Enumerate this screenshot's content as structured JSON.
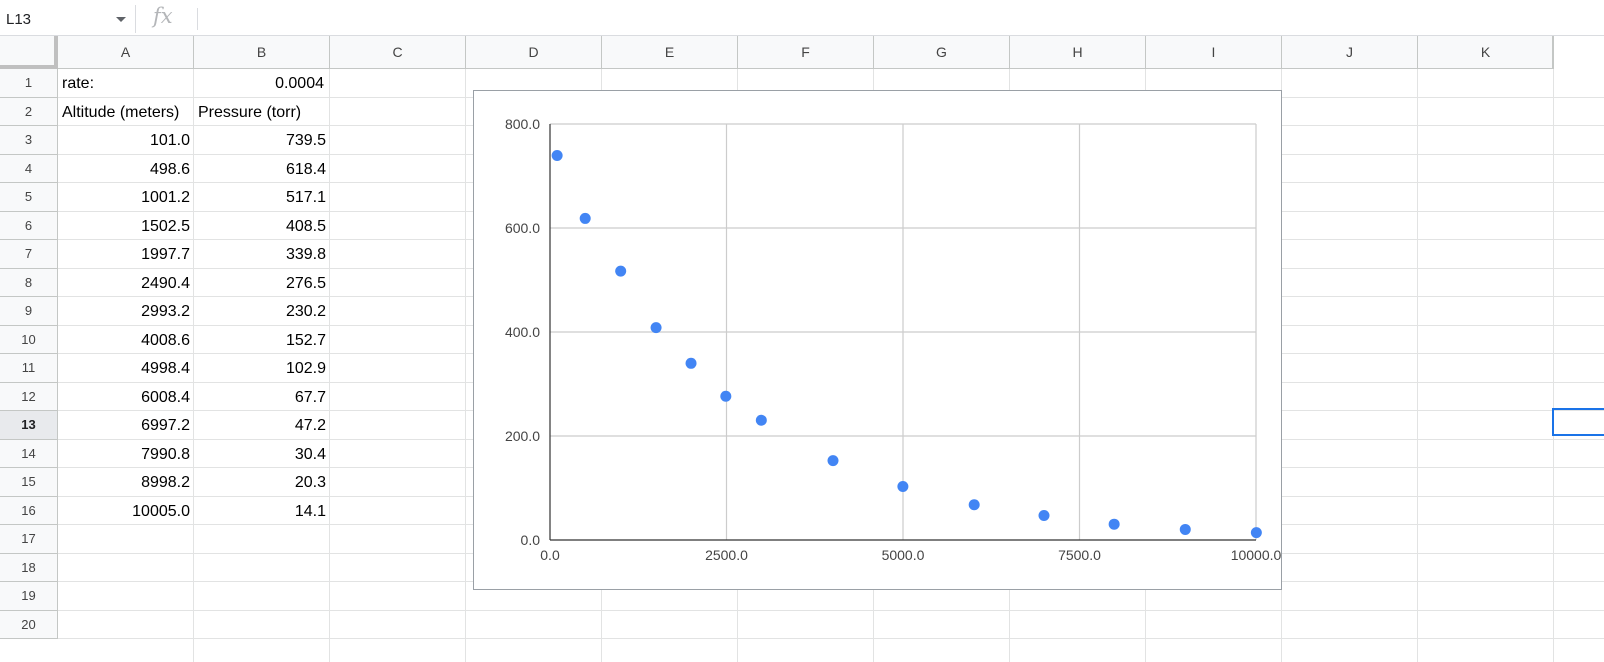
{
  "formula_bar": {
    "name_box": "L13",
    "fx_label": "fx",
    "formula": ""
  },
  "columns": [
    "A",
    "B",
    "C",
    "D",
    "E",
    "F",
    "G",
    "H",
    "I",
    "J",
    "K"
  ],
  "rows": [
    "1",
    "2",
    "3",
    "4",
    "5",
    "6",
    "7",
    "8",
    "9",
    "10",
    "11",
    "12",
    "13",
    "14",
    "15",
    "16",
    "17",
    "18",
    "19",
    "20"
  ],
  "selected_row": "13",
  "cells": {
    "A1": "rate:",
    "B1": "0.0004",
    "A2": "Altitude (meters)",
    "B2": "Pressure (torr)"
  },
  "data_rows": [
    {
      "altitude": "101.0",
      "pressure": "739.5"
    },
    {
      "altitude": "498.6",
      "pressure": "618.4"
    },
    {
      "altitude": "1001.2",
      "pressure": "517.1"
    },
    {
      "altitude": "1502.5",
      "pressure": "408.5"
    },
    {
      "altitude": "1997.7",
      "pressure": "339.8"
    },
    {
      "altitude": "2490.4",
      "pressure": "276.5"
    },
    {
      "altitude": "2993.2",
      "pressure": "230.2"
    },
    {
      "altitude": "4008.6",
      "pressure": "152.7"
    },
    {
      "altitude": "4998.4",
      "pressure": "102.9"
    },
    {
      "altitude": "6008.4",
      "pressure": "67.7"
    },
    {
      "altitude": "6997.2",
      "pressure": "47.2"
    },
    {
      "altitude": "7990.8",
      "pressure": "30.4"
    },
    {
      "altitude": "8998.2",
      "pressure": "20.3"
    },
    {
      "altitude": "10005.0",
      "pressure": "14.1"
    }
  ],
  "chart_data": {
    "type": "scatter",
    "title": "",
    "xlabel": "",
    "ylabel": "",
    "xlim": [
      0,
      10000
    ],
    "ylim": [
      0,
      800
    ],
    "x_ticks": [
      "0.0",
      "2500.0",
      "5000.0",
      "7500.0",
      "10000.0"
    ],
    "y_ticks": [
      "0.0",
      "200.0",
      "400.0",
      "600.0",
      "800.0"
    ],
    "grid": true,
    "point_color": "#4285f4",
    "series": [
      {
        "x": [
          101.0,
          498.6,
          1001.2,
          1502.5,
          1997.7,
          2490.4,
          2993.2,
          4008.6,
          4998.4,
          6008.4,
          6997.2,
          7990.8,
          8998.2,
          10005.0
        ],
        "y": [
          739.5,
          618.4,
          517.1,
          408.5,
          339.8,
          276.5,
          230.2,
          152.7,
          102.9,
          67.7,
          47.2,
          30.4,
          20.3,
          14.1
        ]
      }
    ]
  },
  "colors": {
    "selection": "#1a73e8",
    "header_bg": "#f8f9fa",
    "gridline": "#e2e3e3"
  }
}
